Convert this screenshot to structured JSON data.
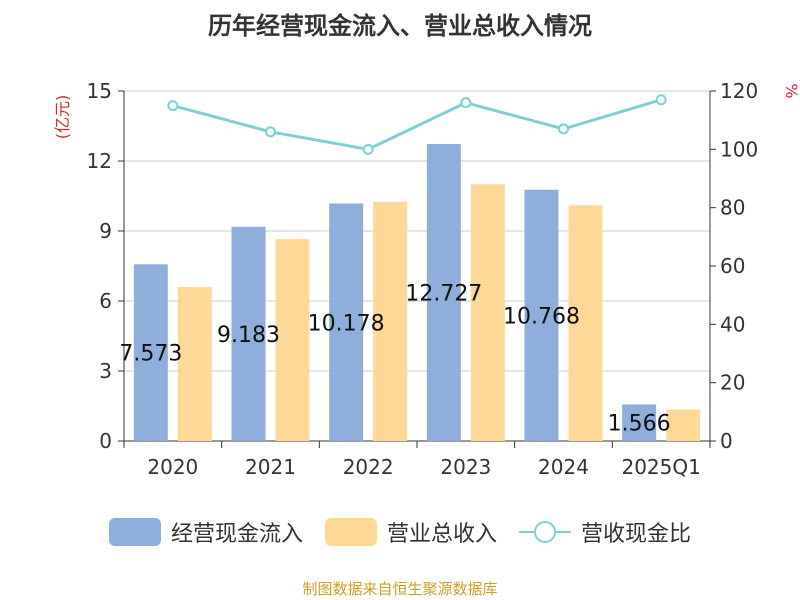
{
  "chart_data": {
    "type": "bar",
    "title": "历年经营现金流入、营业总收入情况",
    "categories": [
      "2020",
      "2021",
      "2022",
      "2023",
      "2024",
      "2025Q1"
    ],
    "series": [
      {
        "name": "经营现金流入",
        "values": [
          7.573,
          9.183,
          10.178,
          12.727,
          10.768,
          1.566
        ],
        "color": "#8faedb",
        "axis": "left",
        "labels": [
          "7.573",
          "9.183",
          "10.178",
          "12.727",
          "10.768",
          "1.566"
        ]
      },
      {
        "name": "营业总收入",
        "values": [
          6.6,
          8.65,
          10.25,
          11.0,
          10.1,
          1.35
        ],
        "color": "#ffd898",
        "axis": "left"
      },
      {
        "name": "营收现金比",
        "type": "line",
        "values": [
          115,
          106,
          100,
          116,
          107,
          117
        ],
        "color": "#7fd0d3",
        "axis": "right"
      }
    ],
    "y_left": {
      "label": "(亿元)",
      "ticks": [
        "0",
        "3",
        "6",
        "9",
        "12",
        "15"
      ],
      "range": [
        0,
        15
      ]
    },
    "y_right": {
      "label": "%",
      "ticks": [
        "0",
        "20",
        "40",
        "60",
        "80",
        "100",
        "120"
      ],
      "range": [
        0,
        120
      ]
    },
    "grid": true,
    "legend_position": "bottom",
    "source": "制图数据来自恒生聚源数据库"
  }
}
